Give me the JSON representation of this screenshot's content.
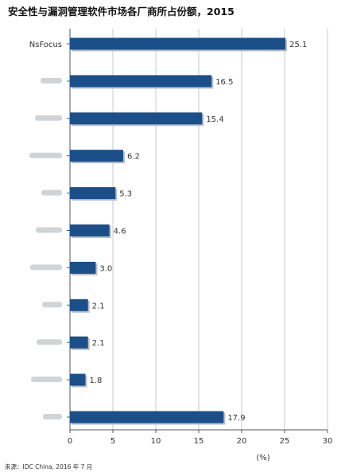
{
  "title": "安全性与漏洞管理软件市场各厂商所占份额，2015",
  "source": "来源：IDC China, 2016 年 7 月",
  "colors": {
    "bar": "#1b4f8a",
    "grid": "#c9c9c9",
    "axis": "#555555",
    "label": "#333333"
  },
  "chart_data": {
    "type": "bar",
    "orientation": "horizontal",
    "title": "安全性与漏洞管理软件市场各厂商所占份额，2015",
    "xlabel": "(%)",
    "xlim": [
      0,
      30
    ],
    "xticks": [
      0,
      5,
      10,
      15,
      20,
      25,
      30
    ],
    "grid": true,
    "categories": [
      "NsFocus",
      "",
      "",
      "",
      "",
      "",
      "",
      "",
      "",
      "",
      ""
    ],
    "blurred_categories": [
      false,
      true,
      true,
      true,
      true,
      true,
      true,
      true,
      true,
      true,
      true
    ],
    "values": [
      25.1,
      16.5,
      15.4,
      6.2,
      5.3,
      4.6,
      3.0,
      2.1,
      2.1,
      1.8,
      17.9
    ],
    "value_labels": [
      "25.1",
      "16.5",
      "15.4",
      "6.2",
      "5.3",
      "4.6",
      "3.0",
      "2.1",
      "2.1",
      "1.8",
      "17.9"
    ]
  }
}
